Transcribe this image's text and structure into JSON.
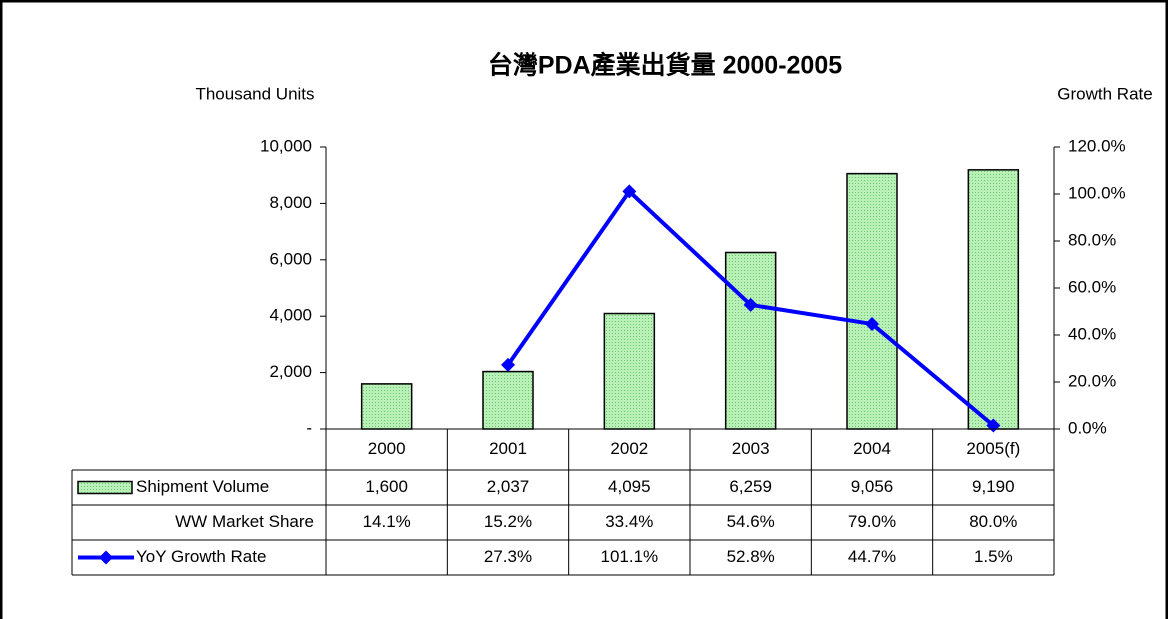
{
  "chart_data": {
    "type": "bar",
    "title": "台灣PDA產業出貨量 2000-2005",
    "y_label": "Thousand Units",
    "y2_label": "Growth Rate",
    "categories": [
      "2000",
      "2001",
      "2002",
      "2003",
      "2004",
      "2005(f)"
    ],
    "ylim": [
      0,
      10000
    ],
    "yticks": [
      {
        "value": 0,
        "label": "-"
      },
      {
        "value": 2000,
        "label": "2,000"
      },
      {
        "value": 4000,
        "label": "4,000"
      },
      {
        "value": 6000,
        "label": "6,000"
      },
      {
        "value": 8000,
        "label": "8,000"
      },
      {
        "value": 10000,
        "label": "10,000"
      }
    ],
    "y2lim": [
      0,
      120
    ],
    "y2ticks": [
      {
        "value": 0,
        "label": "0.0%"
      },
      {
        "value": 20,
        "label": "20.0%"
      },
      {
        "value": 40,
        "label": "40.0%"
      },
      {
        "value": 60,
        "label": "60.0%"
      },
      {
        "value": 80,
        "label": "80.0%"
      },
      {
        "value": 100,
        "label": "100.0%"
      },
      {
        "value": 120,
        "label": "120.0%"
      }
    ],
    "series": [
      {
        "name": "Shipment Volume",
        "type": "bar",
        "color": "#a6eaa6",
        "values": [
          1600,
          2037,
          4095,
          6259,
          9056,
          9190
        ],
        "value_labels": [
          "1,600",
          "2,037",
          "4,095",
          "6,259",
          "9,056",
          "9,190"
        ]
      },
      {
        "name": "YoY Growth Rate",
        "type": "line",
        "axis": "y2",
        "color": "#0000ff",
        "values": [
          null,
          27.3,
          101.1,
          52.8,
          44.7,
          1.5
        ],
        "value_labels": [
          null,
          "27.3%",
          "101.1%",
          "52.8%",
          "44.7%",
          "1.5%"
        ]
      }
    ],
    "market_share": {
      "name": "WW Market Share",
      "values": [
        14.1,
        15.2,
        33.4,
        54.6,
        79.0,
        80.0
      ],
      "value_labels": [
        "14.1%",
        "15.2%",
        "33.4%",
        "54.6%",
        "79.0%",
        "80.0%"
      ]
    }
  }
}
